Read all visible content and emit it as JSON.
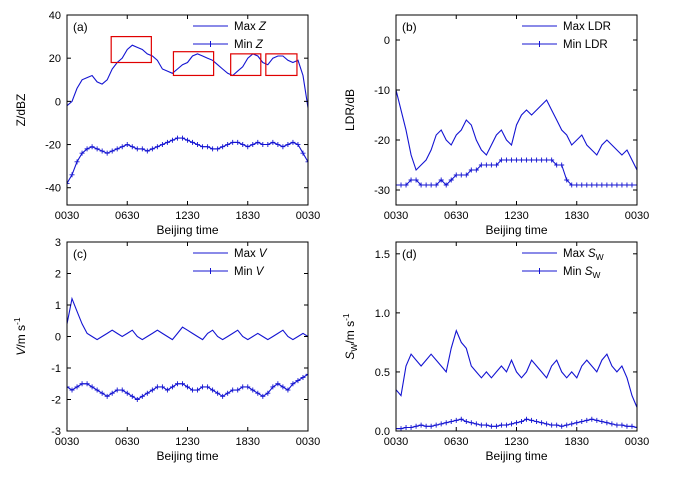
{
  "chart_data": [
    {
      "panel": "(a)",
      "type": "line",
      "xlabel": "Beijing time",
      "ylabel": "Z/dBZ",
      "ylim": [
        -48,
        40
      ],
      "yticks": [
        -40,
        -20,
        0,
        20,
        40
      ],
      "xtick_labels": [
        "0030",
        "0630",
        "1230",
        "1830",
        "0030"
      ],
      "x_hours": [
        0,
        6,
        12,
        18,
        24
      ],
      "legend_position": "top-right",
      "color": "#1414d2",
      "series": [
        {
          "name": "Max Z",
          "legend_main": "Max ",
          "legend_italic": "Z",
          "marker": "line",
          "x": [
            0,
            0.5,
            1,
            1.5,
            2,
            2.5,
            3,
            3.5,
            4,
            4.5,
            5,
            5.5,
            6,
            6.5,
            7,
            7.5,
            8,
            8.5,
            9,
            9.5,
            10,
            10.5,
            11,
            11.5,
            12,
            12.5,
            13,
            13.5,
            14,
            14.5,
            15,
            15.5,
            16,
            16.5,
            17,
            17.5,
            18,
            18.5,
            19,
            19.5,
            20,
            20.5,
            21,
            21.5,
            22,
            22.5,
            23,
            23.5,
            24
          ],
          "values": [
            -2,
            0,
            6,
            10,
            11,
            12,
            9,
            8,
            10,
            15,
            18,
            20,
            24,
            26,
            25,
            24,
            22,
            21,
            19,
            15,
            14,
            13,
            15,
            17,
            18,
            21,
            22,
            21,
            20,
            19,
            17,
            15,
            13,
            12,
            14,
            16,
            20,
            22,
            21,
            18,
            17,
            20,
            21,
            21,
            19,
            18,
            19,
            12,
            -3
          ]
        },
        {
          "name": "Min Z",
          "legend_main": "Min ",
          "legend_italic": "Z",
          "marker": "plus",
          "x": [
            0,
            0.5,
            1,
            1.5,
            2,
            2.5,
            3,
            3.5,
            4,
            4.5,
            5,
            5.5,
            6,
            6.5,
            7,
            7.5,
            8,
            8.5,
            9,
            9.5,
            10,
            10.5,
            11,
            11.5,
            12,
            12.5,
            13,
            13.5,
            14,
            14.5,
            15,
            15.5,
            16,
            16.5,
            17,
            17.5,
            18,
            18.5,
            19,
            19.5,
            20,
            20.5,
            21,
            21.5,
            22,
            22.5,
            23,
            23.5,
            24
          ],
          "values": [
            -38,
            -34,
            -28,
            -24,
            -22,
            -21,
            -22,
            -23,
            -24,
            -23,
            -22,
            -21,
            -20,
            -21,
            -22,
            -22,
            -23,
            -22,
            -21,
            -20,
            -19,
            -18,
            -17,
            -17,
            -18,
            -19,
            -20,
            -21,
            -21,
            -22,
            -22,
            -21,
            -20,
            -19,
            -19,
            -20,
            -21,
            -20,
            -19,
            -20,
            -20,
            -19,
            -20,
            -21,
            -20,
            -19,
            -20,
            -24,
            -28
          ]
        }
      ],
      "annotations": [
        {
          "type": "box",
          "x0": 4.4,
          "x1": 8.4,
          "y0": 18,
          "y1": 30
        },
        {
          "type": "box",
          "x0": 10.6,
          "x1": 14.6,
          "y0": 12,
          "y1": 23
        },
        {
          "type": "box",
          "x0": 16.3,
          "x1": 19.3,
          "y0": 12,
          "y1": 22
        },
        {
          "type": "box",
          "x0": 19.8,
          "x1": 22.9,
          "y0": 12,
          "y1": 22
        }
      ]
    },
    {
      "panel": "(b)",
      "type": "line",
      "xlabel": "Beijing time",
      "ylabel": "LDR/dB",
      "ylim": [
        -33,
        5
      ],
      "yticks": [
        -30,
        -20,
        -10,
        0
      ],
      "xtick_labels": [
        "0030",
        "0630",
        "1230",
        "1830",
        "0030"
      ],
      "x_hours": [
        0,
        6,
        12,
        18,
        24
      ],
      "legend_position": "top-right",
      "color": "#1414d2",
      "series": [
        {
          "name": "Max LDR",
          "legend_main": "Max LDR",
          "legend_italic": "",
          "marker": "line",
          "x": [
            0,
            0.5,
            1,
            1.5,
            2,
            2.5,
            3,
            3.5,
            4,
            4.5,
            5,
            5.5,
            6,
            6.5,
            7,
            7.5,
            8,
            8.5,
            9,
            9.5,
            10,
            10.5,
            11,
            11.5,
            12,
            12.5,
            13,
            13.5,
            14,
            14.5,
            15,
            15.5,
            16,
            16.5,
            17,
            17.5,
            18,
            18.5,
            19,
            19.5,
            20,
            20.5,
            21,
            21.5,
            22,
            22.5,
            23,
            23.5,
            24
          ],
          "values": [
            -10,
            -14,
            -18,
            -23,
            -26,
            -25,
            -24,
            -22,
            -19,
            -18,
            -20,
            -21,
            -19,
            -18,
            -16,
            -17,
            -20,
            -22,
            -23,
            -21,
            -19,
            -18,
            -20,
            -21,
            -17,
            -15,
            -14,
            -15,
            -14,
            -13,
            -12,
            -14,
            -16,
            -18,
            -19,
            -21,
            -20,
            -19,
            -21,
            -22,
            -23,
            -21,
            -20,
            -21,
            -22,
            -23,
            -22,
            -24,
            -26
          ]
        },
        {
          "name": "Min LDR",
          "legend_main": "Min LDR",
          "legend_italic": "",
          "marker": "plus",
          "x": [
            0,
            0.5,
            1,
            1.5,
            2,
            2.5,
            3,
            3.5,
            4,
            4.5,
            5,
            5.5,
            6,
            6.5,
            7,
            7.5,
            8,
            8.5,
            9,
            9.5,
            10,
            10.5,
            11,
            11.5,
            12,
            12.5,
            13,
            13.5,
            14,
            14.5,
            15,
            15.5,
            16,
            16.5,
            17,
            17.5,
            18,
            18.5,
            19,
            19.5,
            20,
            20.5,
            21,
            21.5,
            22,
            22.5,
            23,
            23.5,
            24
          ],
          "values": [
            -29,
            -29,
            -29,
            -28,
            -28,
            -29,
            -29,
            -29,
            -29,
            -28,
            -29,
            -28,
            -27,
            -27,
            -27,
            -26,
            -26,
            -25,
            -25,
            -25,
            -25,
            -24,
            -24,
            -24,
            -24,
            -24,
            -24,
            -24,
            -24,
            -24,
            -24,
            -24,
            -25,
            -25,
            -28,
            -29,
            -29,
            -29,
            -29,
            -29,
            -29,
            -29,
            -29,
            -29,
            -29,
            -29,
            -29,
            -29,
            -29
          ]
        }
      ]
    },
    {
      "panel": "(c)",
      "type": "line",
      "xlabel": "Beijing time",
      "ylabel_main": "V",
      "ylabel_units": "/m s",
      "ylabel_sup": "-1",
      "ylim": [
        -3,
        3
      ],
      "yticks": [
        -3,
        -2,
        -1,
        0,
        1,
        2,
        3
      ],
      "xtick_labels": [
        "0030",
        "0630",
        "1230",
        "1830",
        "0030"
      ],
      "x_hours": [
        0,
        6,
        12,
        18,
        24
      ],
      "legend_position": "top-right",
      "color": "#1414d2",
      "series": [
        {
          "name": "Max V",
          "legend_main": "Max ",
          "legend_italic": "V",
          "marker": "line",
          "x": [
            0,
            0.5,
            1,
            1.5,
            2,
            2.5,
            3,
            3.5,
            4,
            4.5,
            5,
            5.5,
            6,
            6.5,
            7,
            7.5,
            8,
            8.5,
            9,
            9.5,
            10,
            10.5,
            11,
            11.5,
            12,
            12.5,
            13,
            13.5,
            14,
            14.5,
            15,
            15.5,
            16,
            16.5,
            17,
            17.5,
            18,
            18.5,
            19,
            19.5,
            20,
            20.5,
            21,
            21.5,
            22,
            22.5,
            23,
            23.5,
            24
          ],
          "values": [
            0.4,
            1.2,
            0.8,
            0.4,
            0.1,
            0.0,
            -0.1,
            0.0,
            0.1,
            0.2,
            0.1,
            0.0,
            0.1,
            0.2,
            0.0,
            -0.1,
            0.0,
            0.1,
            0.2,
            0.1,
            0.0,
            -0.1,
            0.1,
            0.3,
            0.2,
            0.1,
            0.0,
            -0.1,
            0.1,
            0.2,
            0.0,
            -0.1,
            0.0,
            0.1,
            0.2,
            0.0,
            -0.1,
            0.0,
            0.1,
            0.0,
            -0.1,
            0.0,
            0.1,
            0.2,
            0.0,
            -0.1,
            0.0,
            0.1,
            0.0
          ]
        },
        {
          "name": "Min V",
          "legend_main": "Min ",
          "legend_italic": "V",
          "marker": "plus",
          "x": [
            0,
            0.5,
            1,
            1.5,
            2,
            2.5,
            3,
            3.5,
            4,
            4.5,
            5,
            5.5,
            6,
            6.5,
            7,
            7.5,
            8,
            8.5,
            9,
            9.5,
            10,
            10.5,
            11,
            11.5,
            12,
            12.5,
            13,
            13.5,
            14,
            14.5,
            15,
            15.5,
            16,
            16.5,
            17,
            17.5,
            18,
            18.5,
            19,
            19.5,
            20,
            20.5,
            21,
            21.5,
            22,
            22.5,
            23,
            23.5,
            24
          ],
          "values": [
            -1.6,
            -1.7,
            -1.6,
            -1.5,
            -1.5,
            -1.6,
            -1.7,
            -1.8,
            -1.9,
            -1.8,
            -1.7,
            -1.7,
            -1.8,
            -1.9,
            -2.0,
            -1.9,
            -1.8,
            -1.7,
            -1.6,
            -1.6,
            -1.7,
            -1.6,
            -1.5,
            -1.5,
            -1.6,
            -1.7,
            -1.7,
            -1.6,
            -1.6,
            -1.7,
            -1.8,
            -1.9,
            -1.8,
            -1.7,
            -1.7,
            -1.6,
            -1.6,
            -1.7,
            -1.8,
            -1.9,
            -1.8,
            -1.6,
            -1.5,
            -1.6,
            -1.7,
            -1.5,
            -1.4,
            -1.3,
            -1.2
          ]
        }
      ]
    },
    {
      "panel": "(d)",
      "type": "line",
      "xlabel": "Beijing time",
      "ylabel_main": "S",
      "ylabel_sub": "W",
      "ylabel_units": "/m s",
      "ylabel_sup": "-1",
      "ylim": [
        0,
        1.6
      ],
      "yticks": [
        0.0,
        0.5,
        1.0,
        1.5
      ],
      "ytick_labels": [
        "0.0",
        "0.5",
        "1.0",
        "1.5"
      ],
      "xtick_labels": [
        "0030",
        "0630",
        "1230",
        "1830",
        "0030"
      ],
      "x_hours": [
        0,
        6,
        12,
        18,
        24
      ],
      "legend_position": "top-right",
      "color": "#1414d2",
      "series": [
        {
          "name": "Max SW",
          "legend_main": "Max ",
          "legend_italic": "S",
          "legend_sub": "W",
          "marker": "line",
          "x": [
            0,
            0.5,
            1,
            1.5,
            2,
            2.5,
            3,
            3.5,
            4,
            4.5,
            5,
            5.5,
            6,
            6.5,
            7,
            7.5,
            8,
            8.5,
            9,
            9.5,
            10,
            10.5,
            11,
            11.5,
            12,
            12.5,
            13,
            13.5,
            14,
            14.5,
            15,
            15.5,
            16,
            16.5,
            17,
            17.5,
            18,
            18.5,
            19,
            19.5,
            20,
            20.5,
            21,
            21.5,
            22,
            22.5,
            23,
            23.5,
            24
          ],
          "values": [
            0.35,
            0.3,
            0.55,
            0.65,
            0.6,
            0.55,
            0.6,
            0.65,
            0.6,
            0.55,
            0.5,
            0.7,
            0.85,
            0.75,
            0.7,
            0.55,
            0.5,
            0.45,
            0.5,
            0.45,
            0.5,
            0.55,
            0.5,
            0.6,
            0.5,
            0.45,
            0.5,
            0.6,
            0.55,
            0.5,
            0.45,
            0.55,
            0.6,
            0.5,
            0.45,
            0.5,
            0.45,
            0.55,
            0.6,
            0.55,
            0.5,
            0.6,
            0.65,
            0.55,
            0.5,
            0.55,
            0.45,
            0.3,
            0.2
          ]
        },
        {
          "name": "Min SW",
          "legend_main": "Min ",
          "legend_italic": "S",
          "legend_sub": "W",
          "marker": "plus",
          "x": [
            0,
            0.5,
            1,
            1.5,
            2,
            2.5,
            3,
            3.5,
            4,
            4.5,
            5,
            5.5,
            6,
            6.5,
            7,
            7.5,
            8,
            8.5,
            9,
            9.5,
            10,
            10.5,
            11,
            11.5,
            12,
            12.5,
            13,
            13.5,
            14,
            14.5,
            15,
            15.5,
            16,
            16.5,
            17,
            17.5,
            18,
            18.5,
            19,
            19.5,
            20,
            20.5,
            21,
            21.5,
            22,
            22.5,
            23,
            23.5,
            24
          ],
          "values": [
            0.02,
            0.02,
            0.03,
            0.03,
            0.04,
            0.05,
            0.04,
            0.04,
            0.05,
            0.06,
            0.07,
            0.08,
            0.09,
            0.1,
            0.08,
            0.07,
            0.06,
            0.05,
            0.05,
            0.04,
            0.04,
            0.05,
            0.05,
            0.06,
            0.07,
            0.08,
            0.1,
            0.09,
            0.08,
            0.07,
            0.06,
            0.05,
            0.05,
            0.04,
            0.05,
            0.06,
            0.07,
            0.08,
            0.09,
            0.1,
            0.09,
            0.08,
            0.07,
            0.06,
            0.05,
            0.05,
            0.04,
            0.04,
            0.03
          ]
        }
      ]
    }
  ]
}
